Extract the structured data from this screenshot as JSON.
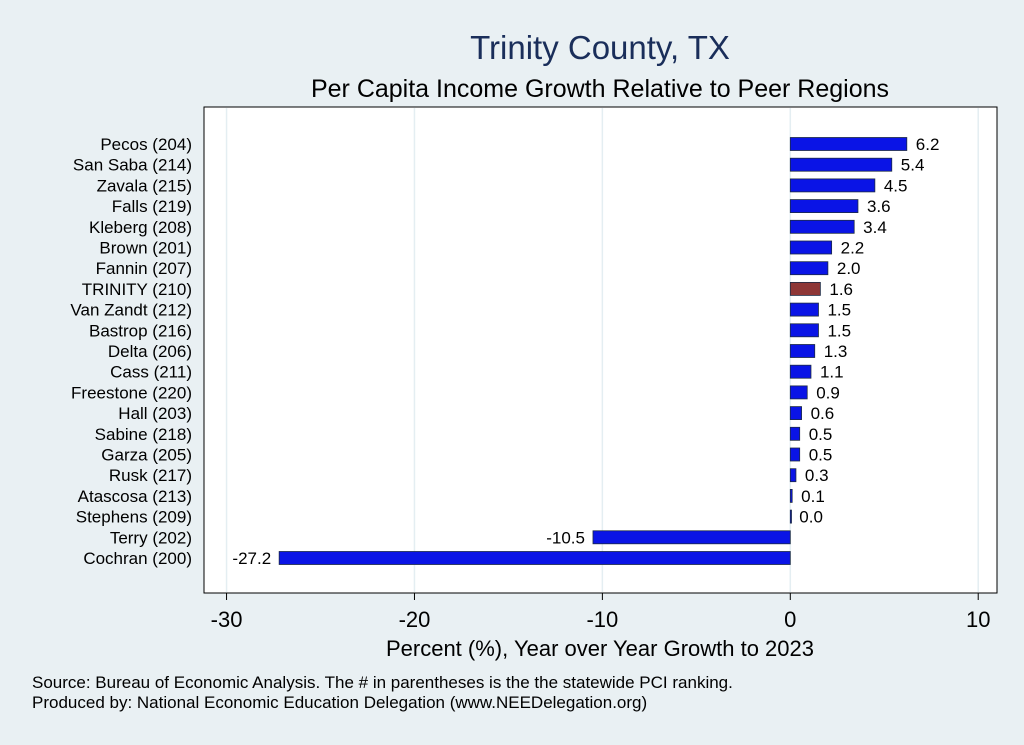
{
  "chart_data": {
    "type": "bar",
    "orientation": "horizontal",
    "title": "Trinity County, TX",
    "subtitle": "Per Capita Income Growth Relative to Peer Regions",
    "xlabel": "Percent (%), Year over Year Growth to 2023",
    "ylabel": "",
    "xlim": [
      -31.2,
      11.0
    ],
    "xticks": [
      -30,
      -20,
      -10,
      0,
      10
    ],
    "xtick_labels": [
      "-30",
      "-20",
      "-10",
      "0",
      "10"
    ],
    "grid": true,
    "categories": [
      "Pecos (204)",
      "San Saba (214)",
      "Zavala (215)",
      "Falls (219)",
      "Kleberg (208)",
      "Brown (201)",
      "Fannin (207)",
      "TRINITY (210)",
      "Van Zandt (212)",
      "Bastrop (216)",
      "Delta (206)",
      "Cass (211)",
      "Freestone (220)",
      "Hall (203)",
      "Sabine (218)",
      "Garza (205)",
      "Rusk (217)",
      "Atascosa (213)",
      "Stephens (209)",
      "Terry (202)",
      "Cochran (200)"
    ],
    "values": [
      6.2,
      5.4,
      4.5,
      3.6,
      3.4,
      2.2,
      2.0,
      1.6,
      1.5,
      1.5,
      1.3,
      1.1,
      0.9,
      0.6,
      0.5,
      0.5,
      0.3,
      0.1,
      0.0,
      -10.5,
      -27.2
    ],
    "value_labels": [
      "6.2",
      "5.4",
      "4.5",
      "3.6",
      "3.4",
      "2.2",
      "2.0",
      "1.6",
      "1.5",
      "1.5",
      "1.3",
      "1.1",
      "0.9",
      "0.6",
      "0.5",
      "0.5",
      "0.3",
      "0.1",
      "0.0",
      "-10.5",
      "-27.2"
    ],
    "highlight_category": "TRINITY (210)",
    "colors": {
      "bar": "#0a14e6",
      "highlight": "#8e3636",
      "title": "#1a2e5a",
      "grid": "#e4eef2",
      "background": "#e9f0f3",
      "plot_background": "#ffffff"
    }
  },
  "footnotes": {
    "source": "Source: Bureau of Economic Analysis. The # in parentheses is the the statewide PCI ranking.",
    "produced_by": "Produced by: National Economic Education Delegation (www.NEEDelegation.org)"
  }
}
